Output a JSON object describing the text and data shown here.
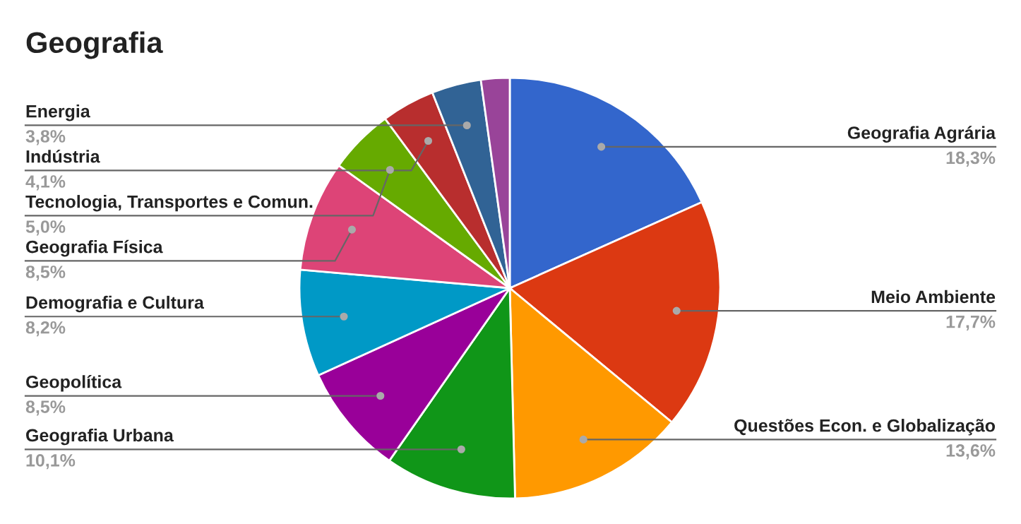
{
  "chart_data": {
    "type": "pie",
    "title": "Geografia",
    "categories": [
      "Geografia Agrária",
      "Meio Ambiente",
      "Questões Econ. e Globalização",
      "Geografia Urbana",
      "Geopolítica",
      "Demografia e Cultura",
      "Geografia Física",
      "Tecnologia, Transportes e Comun.",
      "Indústria",
      "Energia",
      null
    ],
    "values": [
      18.3,
      17.7,
      13.6,
      10.1,
      8.5,
      8.2,
      8.5,
      5.0,
      4.1,
      3.8,
      2.2
    ],
    "colors": [
      "#3366cc",
      "#dc3912",
      "#ff9900",
      "#109618",
      "#990099",
      "#0099c6",
      "#dd4477",
      "#66aa00",
      "#b82e2e",
      "#316395",
      "#994499"
    ],
    "value_labels": [
      "18,3%",
      "17,7%",
      "13,6%",
      "10,1%",
      "8,5%",
      "8,2%",
      "8,5%",
      "5,0%",
      "4,1%",
      "3,8%",
      null
    ],
    "legend": false
  }
}
